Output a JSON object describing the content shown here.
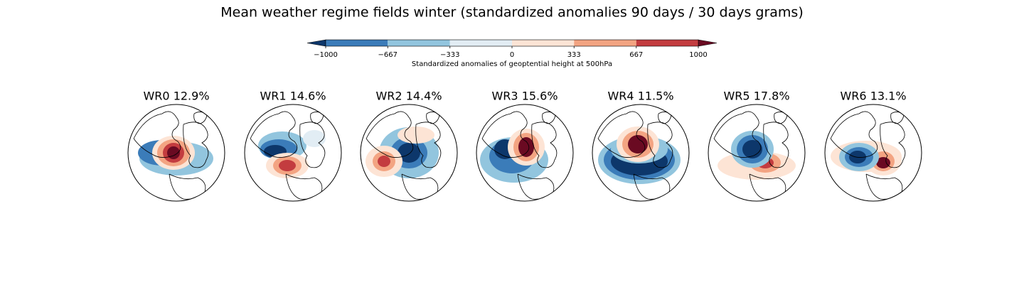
{
  "title": "Mean weather regime fields winter (standardized anomalies 90 days / 30 days grams)",
  "colorbar": {
    "label": "Standardized anomalies of geoptential height at 500hPa",
    "lim": [
      -1000,
      1000
    ],
    "ticks": [
      {
        "value": -1000,
        "label": "−1000"
      },
      {
        "value": -667,
        "label": "−667"
      },
      {
        "value": -333,
        "label": "−333"
      },
      0,
      333,
      667,
      1000
    ],
    "colors": [
      "#3b7cb9",
      "#92c5de",
      "#e2edf4",
      "#fde4d5",
      "#f3a482",
      "#c33c3f"
    ],
    "under_color": "#0d376b",
    "over_color": "#6a0a22"
  },
  "panels": [
    {
      "title": "WR0 12.9%"
    },
    {
      "title": "WR1 14.6%"
    },
    {
      "title": "WR2 14.4%"
    },
    {
      "title": "WR3 15.6%"
    },
    {
      "title": "WR4 11.5%"
    },
    {
      "title": "WR5 17.8%"
    },
    {
      "title": "WR6 13.1%"
    }
  ]
}
